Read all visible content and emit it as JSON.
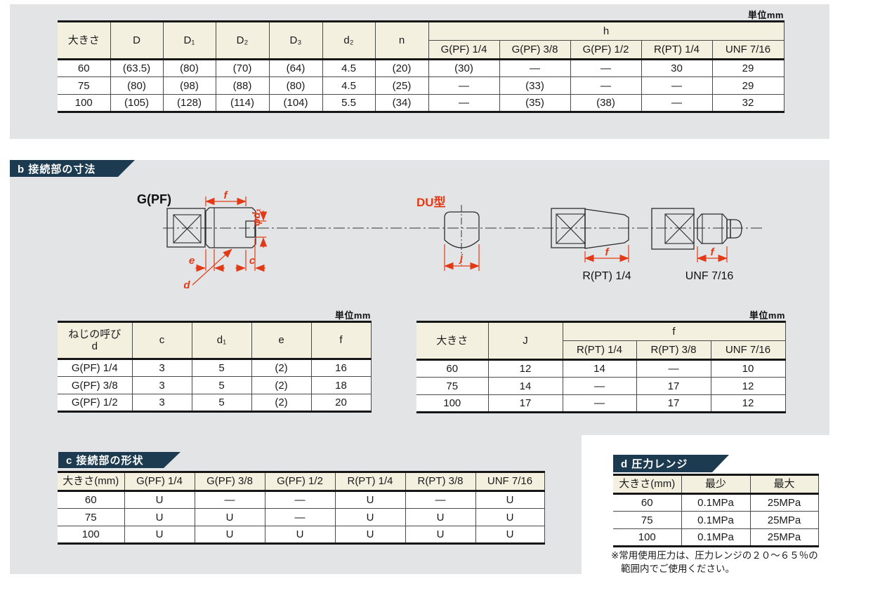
{
  "unit_label": "単位mm",
  "colors": {
    "banner_navy": "#1c3a50",
    "header_cream": "#f4f0e0",
    "block_gray": "#e3e4e6",
    "accent_red": "#e23a17"
  },
  "sections": {
    "b": {
      "label": "b 接続部の寸法"
    },
    "c": {
      "label": "c 接続部の形状"
    },
    "d": {
      "label": "d 圧力レンジ"
    }
  },
  "drawing": {
    "labels": {
      "gpf": "G(PF)",
      "du": "DU型",
      "rpt": "R(PT) 1/4",
      "unf": "UNF 7/16"
    },
    "dims": {
      "f": "f",
      "e": "e",
      "c": "c",
      "d": "d",
      "j": "j",
      "phi_d1": "φd₁"
    }
  },
  "tables": {
    "main": {
      "col_headers": [
        "大きさ",
        "D",
        "D₁",
        "D₂",
        "D₃",
        "d₂",
        "n"
      ],
      "group_header": "h",
      "group_cols": [
        "G(PF) 1/4",
        "G(PF) 3/8",
        "G(PF) 1/2",
        "R(PT) 1/4",
        "UNF 7/16"
      ],
      "rows": [
        [
          "60",
          "(63.5)",
          "(80)",
          "(70)",
          "(64)",
          "4.5",
          "(20)",
          "(30)",
          "—",
          "—",
          "30",
          "29"
        ],
        [
          "75",
          "(80)",
          "(98)",
          "(88)",
          "(80)",
          "4.5",
          "(25)",
          "—",
          "(33)",
          "—",
          "—",
          "29"
        ],
        [
          "100",
          "(105)",
          "(128)",
          "(114)",
          "(104)",
          "5.5",
          "(34)",
          "—",
          "(35)",
          "(38)",
          "—",
          "32"
        ]
      ]
    },
    "thread": {
      "col_headers": [
        "ねじの呼び\nd",
        "c",
        "d₁",
        "e",
        "f"
      ],
      "rows": [
        [
          "G(PF) 1/4",
          "3",
          "5",
          "(2)",
          "16"
        ],
        [
          "G(PF) 3/8",
          "3",
          "5",
          "(2)",
          "18"
        ],
        [
          "G(PF) 1/2",
          "3",
          "5",
          "(2)",
          "20"
        ]
      ]
    },
    "sizef": {
      "col_headers": [
        "大きさ",
        "J"
      ],
      "group_header": "f",
      "group_cols": [
        "R(PT) 1/4",
        "R(PT) 3/8",
        "UNF 7/16"
      ],
      "rows": [
        [
          "60",
          "12",
          "14",
          "—",
          "10"
        ],
        [
          "75",
          "14",
          "—",
          "17",
          "12"
        ],
        [
          "100",
          "17",
          "—",
          "17",
          "12"
        ]
      ]
    },
    "shape": {
      "col_headers": [
        "大きさ(mm)",
        "G(PF) 1/4",
        "G(PF) 3/8",
        "G(PF) 1/2",
        "R(PT) 1/4",
        "R(PT) 3/8",
        "UNF 7/16"
      ],
      "rows": [
        [
          "60",
          "U",
          "—",
          "—",
          "U",
          "—",
          "U"
        ],
        [
          "75",
          "U",
          "U",
          "—",
          "U",
          "U",
          "U"
        ],
        [
          "100",
          "U",
          "U",
          "U",
          "U",
          "U",
          "U"
        ]
      ]
    },
    "pressure": {
      "col_headers": [
        "大きさ(mm)",
        "最少",
        "最大"
      ],
      "rows": [
        [
          "60",
          "0.1MPa",
          "25MPa"
        ],
        [
          "75",
          "0.1MPa",
          "25MPa"
        ],
        [
          "100",
          "0.1MPa",
          "25MPa"
        ]
      ]
    }
  },
  "footnote": {
    "line1": "※常用使用圧力は、圧力レンジの２０～６５％の",
    "line2": "範囲内でご使用ください。"
  }
}
